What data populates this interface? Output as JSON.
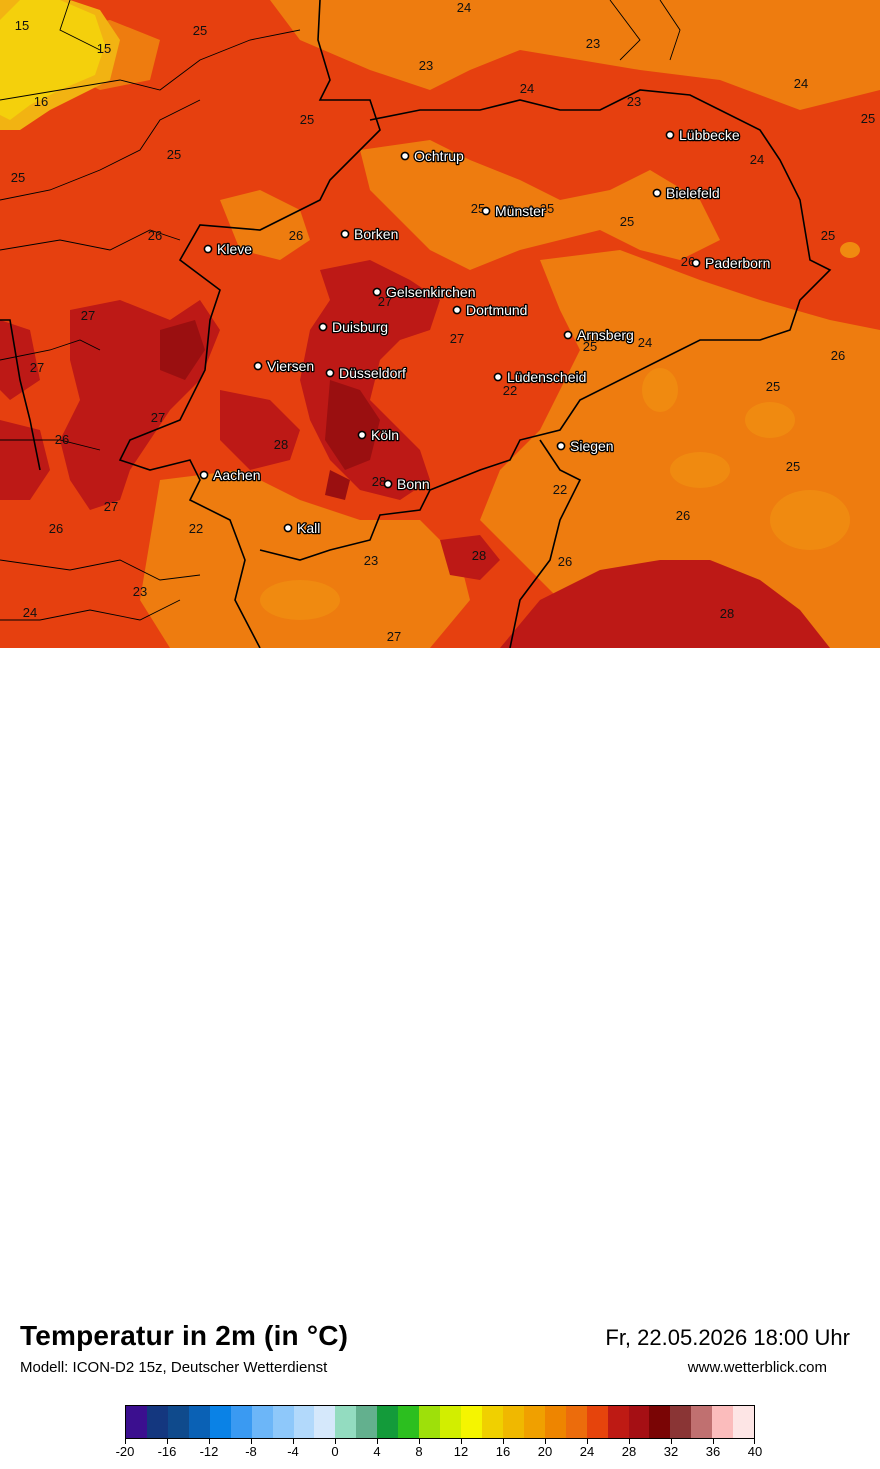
{
  "map": {
    "cities": [
      {
        "name": "Lübbecke"
      },
      {
        "name": "Ochtrup"
      },
      {
        "name": "Bielefeld"
      },
      {
        "name": "Münster"
      },
      {
        "name": "Kleve"
      },
      {
        "name": "Borken"
      },
      {
        "name": "Paderborn"
      },
      {
        "name": "Gelsenkirchen"
      },
      {
        "name": "Dortmund"
      },
      {
        "name": "Duisburg"
      },
      {
        "name": "Arnsberg"
      },
      {
        "name": "Viersen"
      },
      {
        "name": "Düsseldorf"
      },
      {
        "name": "Lüdenscheid"
      },
      {
        "name": "Köln"
      },
      {
        "name": "Siegen"
      },
      {
        "name": "Aachen"
      },
      {
        "name": "Bonn"
      },
      {
        "name": "Kall"
      }
    ],
    "values": [
      "15",
      "15",
      "16",
      "25",
      "24",
      "23",
      "23",
      "24",
      "23",
      "24",
      "25",
      "25",
      "25",
      "25",
      "24",
      "26",
      "26",
      "25",
      "25",
      "25",
      "25",
      "26",
      "27",
      "27",
      "27",
      "25",
      "24",
      "26",
      "27",
      "22",
      "25",
      "27",
      "28",
      "26",
      "22",
      "28",
      "22",
      "23",
      "26",
      "28",
      "23",
      "27",
      "26",
      "28",
      "25",
      "24",
      "27",
      "26"
    ]
  },
  "footer": {
    "title": "Temperatur in 2m (in °C)",
    "subtitle": "Modell: ICON-D2 15z, Deutscher Wetterdienst",
    "datetime": "Fr, 22.05.2026 18:00 Uhr",
    "website": "www.wetterblick.com"
  },
  "legend": {
    "tick_labels": [
      "-20",
      "-16",
      "-12",
      "-8",
      "-4",
      "0",
      "4",
      "8",
      "12",
      "16",
      "20",
      "24",
      "28",
      "32",
      "36",
      "40"
    ],
    "colors": [
      "#3b0f8f",
      "#14377f",
      "#0f4a8c",
      "#0a61b5",
      "#0a82e6",
      "#3a9af2",
      "#6cb6f8",
      "#8ec8fa",
      "#b2d9fb",
      "#d5e8fb",
      "#93dcc0",
      "#63b08e",
      "#139b3a",
      "#2cbf1f",
      "#9ee00a",
      "#d2ee00",
      "#f5f500",
      "#f0d000",
      "#f0b800",
      "#f0a000",
      "#ee8500",
      "#ec6c0c",
      "#e6440c",
      "#be1a14",
      "#a50f14",
      "#7a0505",
      "#8a3535",
      "#c07070",
      "#fbbcbc",
      "#fde5e5"
    ]
  },
  "colors": {
    "warm_light": "#ee7c0f",
    "warm_mid": "#e6400f",
    "hot": "#bd1916",
    "hottest": "#9a0f10",
    "cool": "#f4d00c",
    "cool_edge": "#f2b312",
    "border": "#000000"
  }
}
